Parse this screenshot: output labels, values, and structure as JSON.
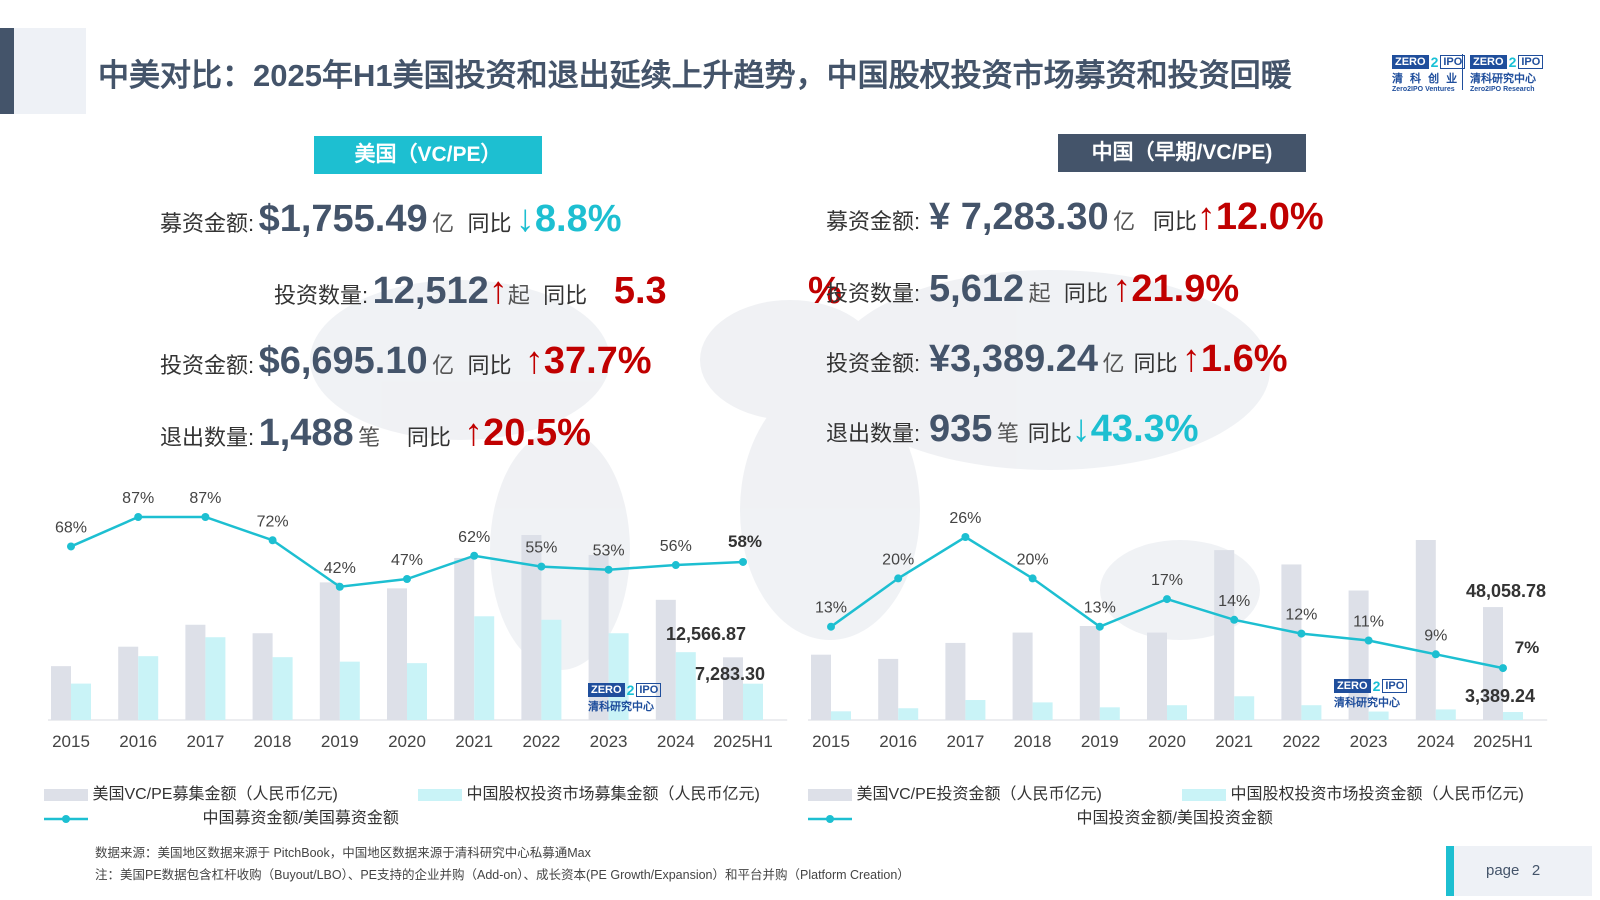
{
  "header": {
    "title": "中美对比：2025年H1美国投资和退出延续上升趋势，中国股权投资市场募资和投资回暖",
    "logo1_cn": "清 科 创 业",
    "logo1_en": "Zero2IPO Ventures",
    "logo2_cn": "清科研究中心",
    "logo2_en": "Zero2IPO Research",
    "logo_zero": "ZERO",
    "logo_two": "2",
    "logo_ipo": "IPO"
  },
  "us": {
    "tag": "美国（VC/PE）",
    "fund_label": "募资金额:",
    "fund_value": "$1,755.49",
    "fund_unit": "亿",
    "fund_yoy_label": "同比",
    "fund_arrow": "↓",
    "fund_pct": "8.8%",
    "inv_count_label": "投资数量:",
    "inv_count_value": "12,512",
    "inv_count_arrow": "↑",
    "inv_count_unit": "起",
    "inv_count_yoy_label": "同比",
    "inv_count_pct_a": "5.3",
    "inv_count_pct_b": "%",
    "inv_amt_label": "投资金额:",
    "inv_amt_value": "$6,695.10",
    "inv_amt_unit": "亿",
    "inv_amt_yoy_label": "同比",
    "inv_amt_arrow": "↑",
    "inv_amt_pct": "37.7%",
    "exit_label": "退出数量:",
    "exit_value": "1,488",
    "exit_unit": "笔",
    "exit_yoy_label": "同比",
    "exit_arrow": "↑",
    "exit_pct": "20.5%"
  },
  "cn": {
    "tag": "中国（早期/VC/PE)",
    "fund_label": "募资金额:",
    "fund_value": "¥ 7,283.30",
    "fund_unit": "亿",
    "fund_yoy_label": "同比",
    "fund_arrow": "↑",
    "fund_pct": "12.0%",
    "inv_count_label": "投资数量:",
    "inv_count_value": "5,612",
    "inv_count_unit": "起",
    "inv_count_yoy_label": "同比",
    "inv_count_arrow": "↑",
    "inv_count_pct": "21.9%",
    "inv_amt_label": "投资金额:",
    "inv_amt_value": "¥3,389.24",
    "inv_amt_unit": "亿",
    "inv_amt_yoy_label": "同比",
    "inv_amt_arrow": "↑",
    "inv_amt_pct": "1.6%",
    "exit_label": "退出数量:",
    "exit_value": "935",
    "exit_unit": "笔",
    "exit_yoy_label": "同比",
    "exit_arrow": "↓",
    "exit_pct": "43.3%"
  },
  "legends": {
    "left_gray": "美国VC/PE募集金额（人民币亿元)",
    "left_cyan": "中国股权投资市场募集金额（人民币亿元)",
    "left_line": "中国募资金额/美国募资金额",
    "right_gray": "美国VC/PE投资金额（人民币亿元)",
    "right_cyan": "中国股权投资市场投资金额（人民币亿元)",
    "right_line": "中国投资金额/美国投资金额"
  },
  "footnotes": {
    "source": "数据来源：美国地区数据来源于 PitchBook，中国地区数据来源于清科研究中心私募通Max",
    "note": "注：美国PE数据包含杠杆收购（Buyout/LBO）、PE支持的企业并购（Add-on）、成长资本(PE Growth/Expansion）和平台并购（Platform Creation）"
  },
  "page": {
    "label": "page",
    "number": "2"
  },
  "colors": {
    "accent_cyan": "#1dbfd1",
    "navy": "#44546a",
    "red": "#c00000",
    "bar_gray": "#dde0e8",
    "bar_cyan": "#c9f3f7"
  },
  "chart_data": [
    {
      "type": "bar",
      "categories": [
        "2015",
        "2016",
        "2017",
        "2018",
        "2019",
        "2020",
        "2021",
        "2022",
        "2023",
        "2024",
        "2025H1"
      ],
      "series": [
        {
          "name": "美国VC/PE募集金额（人民币亿元)",
          "values": [
            10800,
            14700,
            19100,
            17400,
            27600,
            26400,
            32500,
            37100,
            33100,
            24100,
            12566.87
          ]
        },
        {
          "name": "中国股权投资市场募集金额（人民币亿元)",
          "values": [
            7300,
            12800,
            16600,
            12600,
            11700,
            11400,
            20800,
            20100,
            17400,
            13600,
            7283.3
          ]
        },
        {
          "name": "中国募资金额/美国募资金额",
          "type": "line",
          "values": [
            68,
            87,
            87,
            72,
            42,
            47,
            62,
            55,
            53,
            56,
            58
          ]
        }
      ],
      "line_labels": [
        "68%",
        "87%",
        "87%",
        "72%",
        "42%",
        "47%",
        "62%",
        "55%",
        "53%",
        "56%",
        "58%"
      ],
      "data_labels": [
        "12,566.87",
        "7,283.30"
      ]
    },
    {
      "type": "bar",
      "categories": [
        "2015",
        "2016",
        "2017",
        "2018",
        "2019",
        "2020",
        "2021",
        "2022",
        "2023",
        "2024",
        "2025H1"
      ],
      "series": [
        {
          "name": "美国VC/PE投资金额（人民币亿元)",
          "values": [
            27800,
            26000,
            32800,
            37200,
            40000,
            37200,
            72300,
            66200,
            55100,
            76600,
            48058.78
          ]
        },
        {
          "name": "中国股权投资市场投资金额（人民币亿元)",
          "values": [
            3700,
            5000,
            8500,
            7500,
            5400,
            6300,
            10100,
            6300,
            3600,
            4500,
            3389.24
          ]
        },
        {
          "name": "中国投资金额/美国投资金额",
          "type": "line",
          "values": [
            13,
            20,
            26,
            20,
            13,
            17,
            14,
            12,
            11,
            9,
            7
          ]
        }
      ],
      "line_labels": [
        "13%",
        "20%",
        "26%",
        "20%",
        "13%",
        "17%",
        "14%",
        "12%",
        "11%",
        "9%",
        "7%"
      ],
      "data_labels": [
        "48,058.78",
        "3,389.24"
      ]
    }
  ]
}
